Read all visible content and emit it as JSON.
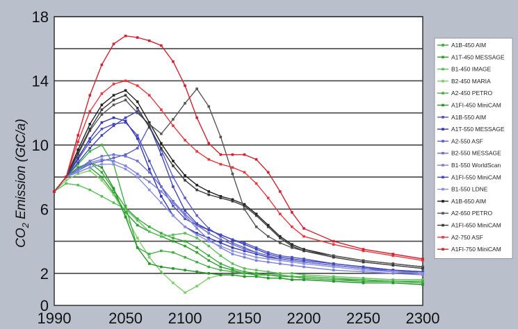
{
  "chart_data": {
    "type": "line",
    "ylabel": "CO2 Emission (GtC/a)",
    "ylabel_parts": [
      "CO",
      "2",
      " Emission (GtC/a)"
    ],
    "xlabel": "",
    "xlim": [
      1990,
      2300
    ],
    "ylim": [
      0,
      18
    ],
    "x_ticks": [
      1990,
      2050,
      2100,
      2150,
      2200,
      2250,
      2300
    ],
    "x_tick_labels": [
      "1990",
      "2050",
      "2100",
      "2150",
      "2200",
      "2250",
      "2300"
    ],
    "y_ticks": [
      0,
      2,
      6,
      10,
      14,
      18
    ],
    "y_tick_labels": [
      "0",
      "2",
      "6",
      "10",
      "14",
      "18"
    ],
    "grid_y": [
      2,
      4,
      6,
      8,
      10,
      12,
      14,
      16,
      18
    ],
    "legend_position": "right",
    "x": [
      1990,
      2000,
      2010,
      2020,
      2030,
      2040,
      2050,
      2060,
      2070,
      2080,
      2090,
      2100,
      2110,
      2120,
      2130,
      2140,
      2150,
      2160,
      2170,
      2180,
      2190,
      2200,
      2225,
      2250,
      2275,
      2300
    ],
    "series": [
      {
        "name": "A1B-450 AIM",
        "color": "#3aa83a",
        "values": [
          7.1,
          8.0,
          8.5,
          8.9,
          8.3,
          7.2,
          6.1,
          5.4,
          4.9,
          4.5,
          4.2,
          4.0,
          3.6,
          3.1,
          2.6,
          2.3,
          2.1,
          2.0,
          1.9,
          1.9,
          1.8,
          1.8,
          1.7,
          1.6,
          1.5,
          1.5
        ]
      },
      {
        "name": "A1T-450 MESSAGE",
        "color": "#2e9e2e",
        "values": [
          7.1,
          8.0,
          8.3,
          8.6,
          8.0,
          7.0,
          5.8,
          5.0,
          4.6,
          4.3,
          4.0,
          3.7,
          3.3,
          2.8,
          2.4,
          2.2,
          2.0,
          1.9,
          1.9,
          1.8,
          1.8,
          1.7,
          1.6,
          1.5,
          1.5,
          1.4
        ]
      },
      {
        "name": "B1-450 IMAGE",
        "color": "#5cbf5c",
        "values": [
          7.1,
          7.6,
          7.5,
          7.2,
          6.8,
          6.4,
          6.0,
          5.3,
          4.6,
          4.3,
          4.4,
          4.5,
          4.2,
          3.7,
          3.1,
          2.6,
          2.3,
          2.2,
          2.1,
          2.0,
          2.0,
          1.9,
          1.8,
          1.7,
          1.6,
          1.6
        ]
      },
      {
        "name": "B2-450 MARIA",
        "color": "#7ccf6a",
        "values": [
          7.1,
          7.8,
          8.2,
          8.4,
          7.8,
          6.9,
          5.6,
          4.2,
          3.0,
          2.1,
          1.4,
          0.8,
          1.2,
          1.7,
          1.9,
          1.9,
          1.8,
          1.8,
          1.7,
          1.7,
          1.6,
          1.6,
          1.5,
          1.4,
          1.4,
          1.3
        ]
      },
      {
        "name": "A2-450 PETRO",
        "color": "#44b044",
        "values": [
          7.1,
          8.0,
          8.8,
          9.6,
          10.0,
          8.8,
          6.2,
          3.6,
          3.2,
          3.4,
          3.3,
          3.0,
          2.7,
          2.4,
          2.2,
          2.1,
          2.0,
          1.9,
          1.9,
          1.8,
          1.8,
          1.7,
          1.6,
          1.6,
          1.5,
          1.5
        ]
      },
      {
        "name": "A1FI-450 MiniCAM",
        "color": "#27962a",
        "values": [
          7.1,
          8.0,
          8.6,
          8.9,
          8.6,
          7.3,
          5.5,
          3.6,
          2.6,
          2.4,
          2.3,
          2.2,
          2.1,
          2.0,
          1.9,
          1.9,
          1.8,
          1.8,
          1.7,
          1.7,
          1.6,
          1.6,
          1.5,
          1.4,
          1.4,
          1.3
        ]
      },
      {
        "name": "A1B-550 AIM",
        "color": "#4f54c4",
        "values": [
          7.1,
          8.0,
          9.1,
          10.2,
          11.0,
          11.3,
          11.4,
          10.6,
          9.0,
          7.4,
          6.2,
          5.4,
          5.0,
          4.7,
          4.4,
          4.1,
          3.9,
          3.6,
          3.3,
          3.1,
          3.0,
          2.9,
          2.6,
          2.4,
          2.2,
          2.0
        ]
      },
      {
        "name": "A1T-550 MESSAGE",
        "color": "#3438b0",
        "values": [
          7.1,
          8.0,
          9.2,
          10.4,
          11.4,
          11.7,
          11.5,
          10.4,
          8.5,
          6.8,
          5.6,
          4.9,
          4.5,
          4.2,
          3.9,
          3.6,
          3.4,
          3.2,
          3.0,
          2.9,
          2.8,
          2.7,
          2.5,
          2.3,
          2.2,
          2.1
        ]
      },
      {
        "name": "A2-550 ASF",
        "color": "#5a5ec8",
        "values": [
          7.1,
          8.0,
          8.4,
          8.8,
          9.0,
          9.2,
          9.4,
          9.8,
          11.2,
          9.7,
          8.0,
          6.7,
          5.6,
          4.8,
          4.3,
          3.9,
          3.6,
          3.3,
          3.1,
          2.9,
          2.8,
          2.7,
          2.5,
          2.3,
          2.1,
          2.0
        ]
      },
      {
        "name": "B2-550 MESSAGE",
        "color": "#6b6fd0",
        "values": [
          7.1,
          8.0,
          8.5,
          9.0,
          9.3,
          9.4,
          9.3,
          9.0,
          8.3,
          7.4,
          6.5,
          5.7,
          5.0,
          4.5,
          4.1,
          3.8,
          3.5,
          3.3,
          3.1,
          2.9,
          2.8,
          2.7,
          2.5,
          2.3,
          2.2,
          2.0
        ]
      },
      {
        "name": "B1-550 WorldScan",
        "color": "#7c80d8",
        "values": [
          7.1,
          8.0,
          8.4,
          8.9,
          9.1,
          9.0,
          8.7,
          8.2,
          7.7,
          7.1,
          6.4,
          5.6,
          4.8,
          4.1,
          3.6,
          3.2,
          3.0,
          2.8,
          2.7,
          2.6,
          2.5,
          2.4,
          2.2,
          2.1,
          2.0,
          1.9
        ]
      },
      {
        "name": "A1FI-550 MiniCAM",
        "color": "#4146b8",
        "values": [
          7.1,
          8.0,
          8.9,
          9.8,
          10.6,
          11.2,
          11.7,
          12.1,
          11.2,
          9.4,
          7.4,
          5.9,
          5.1,
          4.7,
          4.4,
          4.1,
          3.8,
          3.5,
          3.2,
          3.0,
          2.9,
          2.8,
          2.6,
          2.4,
          2.2,
          2.1
        ]
      },
      {
        "name": "B1-550 LDNE",
        "color": "#8a8ee0",
        "values": [
          7.1,
          8.0,
          8.3,
          8.6,
          8.8,
          8.8,
          8.5,
          8.0,
          7.2,
          6.4,
          5.6,
          4.9,
          4.4,
          4.0,
          3.7,
          3.4,
          3.2,
          3.0,
          2.9,
          2.8,
          2.7,
          2.6,
          2.4,
          2.2,
          2.1,
          2.0
        ]
      },
      {
        "name": "A1B-650 AIM",
        "color": "#1e1e1e",
        "values": [
          7.1,
          8.0,
          9.7,
          11.3,
          12.5,
          13.1,
          13.4,
          12.7,
          11.4,
          10.1,
          9.0,
          8.1,
          7.5,
          7.1,
          6.8,
          6.6,
          6.3,
          5.7,
          5.0,
          4.3,
          3.8,
          3.5,
          3.1,
          2.8,
          2.6,
          2.4
        ]
      },
      {
        "name": "A2-650 PETRO",
        "color": "#555555",
        "values": [
          7.1,
          8.0,
          9.4,
          10.9,
          11.9,
          12.5,
          12.8,
          12.0,
          11.3,
          10.7,
          11.6,
          12.6,
          13.5,
          12.4,
          10.5,
          8.2,
          6.0,
          4.9,
          4.3,
          3.9,
          3.6,
          3.4,
          3.1,
          2.8,
          2.6,
          2.4
        ]
      },
      {
        "name": "A1FI-650 MiniCAM",
        "color": "#3a3a3a",
        "values": [
          7.1,
          8.0,
          9.5,
          11.0,
          12.2,
          12.8,
          13.1,
          12.3,
          11.1,
          9.8,
          8.7,
          7.8,
          7.2,
          6.9,
          6.7,
          6.5,
          6.2,
          5.6,
          4.9,
          4.2,
          3.7,
          3.4,
          3.0,
          2.7,
          2.5,
          2.3
        ]
      },
      {
        "name": "A2-750 ASF",
        "color": "#e8383f",
        "values": [
          7.1,
          8.0,
          10.2,
          12.1,
          13.2,
          13.8,
          14.0,
          13.7,
          13.1,
          12.2,
          11.2,
          10.3,
          9.6,
          9.1,
          8.8,
          8.6,
          8.3,
          7.6,
          6.7,
          5.7,
          4.9,
          4.3,
          3.8,
          3.4,
          3.1,
          2.8
        ]
      },
      {
        "name": "A1FI-750 MiniCAM",
        "color": "#d42030",
        "values": [
          7.1,
          8.0,
          10.6,
          13.1,
          15.0,
          16.3,
          16.8,
          16.7,
          16.5,
          16.2,
          15.2,
          13.7,
          11.7,
          10.1,
          9.4,
          9.4,
          9.4,
          9.1,
          8.3,
          7.1,
          5.8,
          4.8,
          4.0,
          3.5,
          3.2,
          2.9
        ]
      }
    ]
  }
}
